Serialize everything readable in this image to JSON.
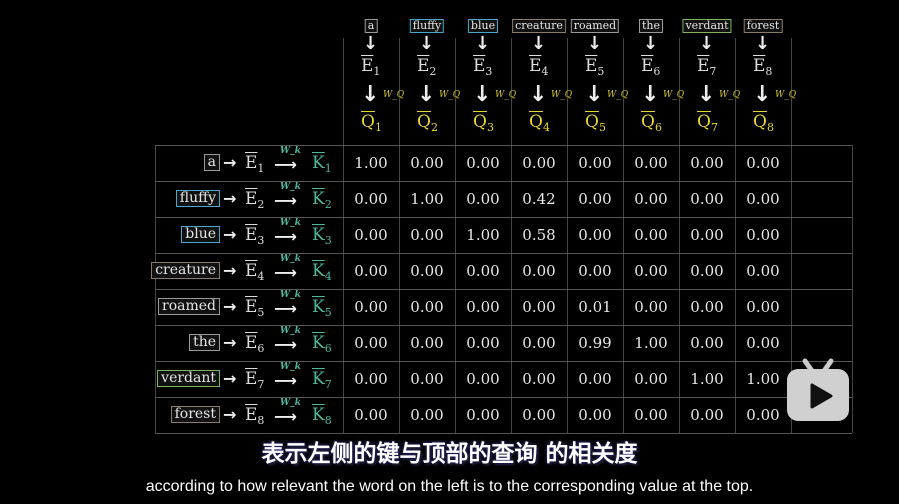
{
  "columns": [
    {
      "word": "a",
      "color": "#9a9a9a",
      "e": "E",
      "e_sub": "1",
      "q": "Q",
      "q_sub": "1"
    },
    {
      "word": "fluffy",
      "color": "#4aa8cc",
      "e": "E",
      "e_sub": "2",
      "q": "Q",
      "q_sub": "2"
    },
    {
      "word": "blue",
      "color": "#4aa8cc",
      "e": "E",
      "e_sub": "3",
      "q": "Q",
      "q_sub": "3"
    },
    {
      "word": "creature",
      "color": "#8a7b6c",
      "e": "E",
      "e_sub": "4",
      "q": "Q",
      "q_sub": "4"
    },
    {
      "word": "roamed",
      "color": "#9a9a9a",
      "e": "E",
      "e_sub": "5",
      "q": "Q",
      "q_sub": "5"
    },
    {
      "word": "the",
      "color": "#9a9a9a",
      "e": "E",
      "e_sub": "6",
      "q": "Q",
      "q_sub": "6"
    },
    {
      "word": "verdant",
      "color": "#7db35a",
      "e": "E",
      "e_sub": "7",
      "q": "Q",
      "q_sub": "7"
    },
    {
      "word": "forest",
      "color": "#8a7b6c",
      "e": "E",
      "e_sub": "8",
      "q": "Q",
      "q_sub": "8"
    }
  ],
  "query_weight_label": "W_Q",
  "key_weight_label": "W_k",
  "rows": [
    {
      "word": "a",
      "color": "#9a9a9a",
      "e": "E",
      "e_sub": "1",
      "k": "K",
      "k_sub": "1",
      "values": [
        "1.00",
        "0.00",
        "0.00",
        "0.00",
        "0.00",
        "0.00",
        "0.00",
        "0.00"
      ]
    },
    {
      "word": "fluffy",
      "color": "#4aa8cc",
      "e": "E",
      "e_sub": "2",
      "k": "K",
      "k_sub": "2",
      "values": [
        "0.00",
        "1.00",
        "0.00",
        "0.42",
        "0.00",
        "0.00",
        "0.00",
        "0.00"
      ]
    },
    {
      "word": "blue",
      "color": "#4aa8cc",
      "e": "E",
      "e_sub": "3",
      "k": "K",
      "k_sub": "3",
      "values": [
        "0.00",
        "0.00",
        "1.00",
        "0.58",
        "0.00",
        "0.00",
        "0.00",
        "0.00"
      ]
    },
    {
      "word": "creature",
      "color": "#8a7b6c",
      "e": "E",
      "e_sub": "4",
      "k": "K",
      "k_sub": "4",
      "values": [
        "0.00",
        "0.00",
        "0.00",
        "0.00",
        "0.00",
        "0.00",
        "0.00",
        "0.00"
      ]
    },
    {
      "word": "roamed",
      "color": "#9a9a9a",
      "e": "E",
      "e_sub": "5",
      "k": "K",
      "k_sub": "5",
      "values": [
        "0.00",
        "0.00",
        "0.00",
        "0.00",
        "0.01",
        "0.00",
        "0.00",
        "0.00"
      ]
    },
    {
      "word": "the",
      "color": "#9a9a9a",
      "e": "E",
      "e_sub": "6",
      "k": "K",
      "k_sub": "6",
      "values": [
        "0.00",
        "0.00",
        "0.00",
        "0.00",
        "0.99",
        "1.00",
        "0.00",
        "0.00"
      ]
    },
    {
      "word": "verdant",
      "color": "#7db35a",
      "e": "E",
      "e_sub": "7",
      "k": "K",
      "k_sub": "7",
      "values": [
        "0.00",
        "0.00",
        "0.00",
        "0.00",
        "0.00",
        "0.00",
        "1.00",
        "1.00"
      ]
    },
    {
      "word": "forest",
      "color": "#8a7b6c",
      "e": "E",
      "e_sub": "8",
      "k": "K",
      "k_sub": "8",
      "values": [
        "0.00",
        "0.00",
        "0.00",
        "0.00",
        "0.00",
        "0.00",
        "0.00",
        "0.00"
      ]
    }
  ],
  "subtitles": {
    "chinese": "表示左侧的键与顶部的查询  的相关度",
    "english": "according to how relevant the word on the left is to the corresponding value at the top."
  },
  "logo_icon": "bilibili-tv-icon"
}
